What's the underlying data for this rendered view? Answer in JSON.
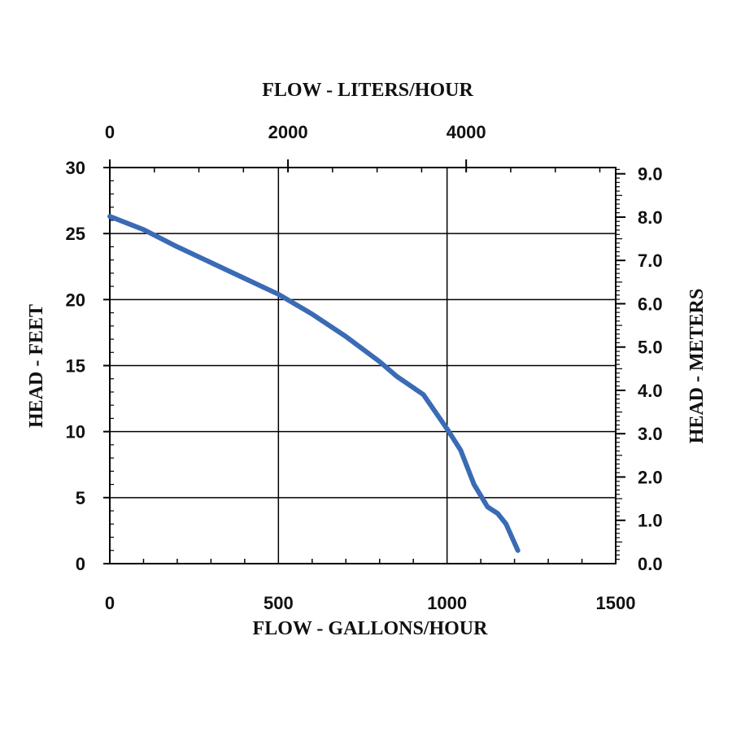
{
  "chart_data": {
    "type": "line",
    "title": "",
    "xlabel": "FLOW - GALLONS/HOUR",
    "x2label": "FLOW - LITERS/HOUR",
    "ylabel": "HEAD - FEET",
    "y2label": "HEAD - METERS",
    "xlim": [
      0,
      1500
    ],
    "ylim": [
      0,
      30
    ],
    "x2lim": [
      0,
      5678
    ],
    "y2lim": [
      0,
      9.144
    ],
    "x_ticks": [
      "0",
      "500",
      "1000",
      "1500"
    ],
    "x2_ticks": [
      "0",
      "2000",
      "4000"
    ],
    "y_ticks": [
      "0",
      "5",
      "10",
      "15",
      "20",
      "25",
      "30"
    ],
    "y2_ticks": [
      "0.0",
      "1.0",
      "2.0",
      "3.0",
      "4.0",
      "5.0",
      "6.0",
      "7.0",
      "8.0",
      "9.0"
    ],
    "grid": true,
    "series": [
      {
        "color": "#3a6bb5",
        "x": [
          0,
          100,
          200,
          300,
          400,
          500,
          600,
          700,
          800,
          850,
          930,
          1000,
          1040,
          1080,
          1120,
          1150,
          1175,
          1210
        ],
        "y": [
          26.3,
          25.3,
          24.0,
          22.8,
          21.6,
          20.4,
          18.9,
          17.2,
          15.3,
          14.2,
          12.8,
          10.2,
          8.6,
          6.0,
          4.3,
          3.8,
          3.0,
          1.0
        ]
      }
    ]
  }
}
